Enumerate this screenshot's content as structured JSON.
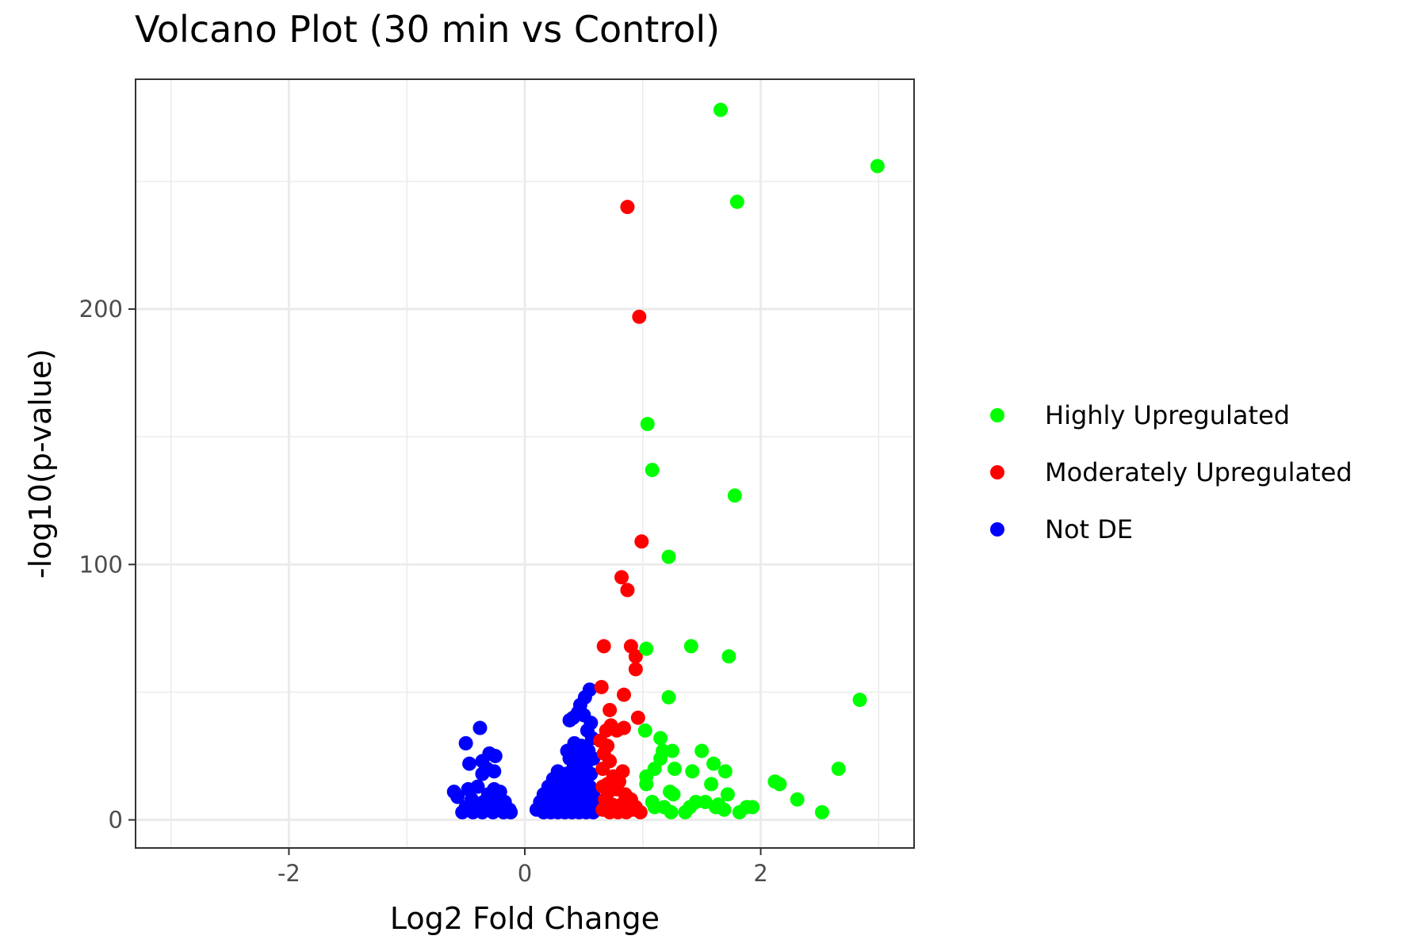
{
  "chart_data": {
    "type": "scatter",
    "title": "Volcano Plot (30 min vs Control)",
    "xlabel": "Log2 Fold Change",
    "ylabel": "-log10(p-value)",
    "xlim": [
      -3.3,
      3.3
    ],
    "ylim": [
      -11,
      290
    ],
    "x_ticks": [
      -2,
      0,
      2
    ],
    "x_tick_labels": [
      "-2",
      "0",
      "2"
    ],
    "y_ticks": [
      0,
      100,
      200
    ],
    "y_tick_labels": [
      "0",
      "100",
      "200"
    ],
    "x_minor_ticks": [
      -3,
      -1,
      1,
      3
    ],
    "y_minor_ticks": [
      50,
      150,
      250
    ],
    "grid": true,
    "legend_position": "right",
    "series": [
      {
        "name": "Highly Upregulated",
        "color": "#00ff00",
        "points": [
          [
            1.66,
            278
          ],
          [
            2.99,
            256
          ],
          [
            1.8,
            242
          ],
          [
            1.04,
            155
          ],
          [
            1.08,
            137
          ],
          [
            1.78,
            127
          ],
          [
            1.22,
            103
          ],
          [
            1.03,
            67
          ],
          [
            1.41,
            68
          ],
          [
            1.73,
            64
          ],
          [
            1.22,
            48
          ],
          [
            2.84,
            47
          ],
          [
            1.02,
            35
          ],
          [
            1.15,
            32
          ],
          [
            1.17,
            27
          ],
          [
            1.25,
            27
          ],
          [
            1.5,
            27
          ],
          [
            1.15,
            24
          ],
          [
            1.6,
            22
          ],
          [
            1.1,
            20
          ],
          [
            1.27,
            20
          ],
          [
            1.42,
            19
          ],
          [
            1.7,
            19
          ],
          [
            2.66,
            20
          ],
          [
            1.03,
            17
          ],
          [
            2.12,
            15
          ],
          [
            2.16,
            14
          ],
          [
            1.03,
            14
          ],
          [
            1.58,
            14
          ],
          [
            1.23,
            11
          ],
          [
            1.26,
            10
          ],
          [
            1.72,
            10
          ],
          [
            2.31,
            8
          ],
          [
            1.08,
            7
          ],
          [
            1.45,
            7
          ],
          [
            1.53,
            7
          ],
          [
            1.1,
            5
          ],
          [
            1.18,
            5
          ],
          [
            1.4,
            5
          ],
          [
            1.64,
            6
          ],
          [
            1.88,
            5
          ],
          [
            1.93,
            5
          ],
          [
            1.24,
            3
          ],
          [
            1.36,
            3
          ],
          [
            1.82,
            3
          ],
          [
            2.52,
            3
          ],
          [
            1.69,
            4
          ],
          [
            1.62,
            5
          ]
        ]
      },
      {
        "name": "Moderately Upregulated",
        "color": "#ff0000",
        "points": [
          [
            0.87,
            240
          ],
          [
            0.97,
            197
          ],
          [
            0.99,
            109
          ],
          [
            0.82,
            95
          ],
          [
            0.87,
            90
          ],
          [
            0.67,
            68
          ],
          [
            0.9,
            68
          ],
          [
            0.94,
            64
          ],
          [
            0.94,
            59
          ],
          [
            0.65,
            52
          ],
          [
            0.84,
            49
          ],
          [
            0.72,
            43
          ],
          [
            0.96,
            40
          ],
          [
            0.73,
            37
          ],
          [
            0.69,
            35
          ],
          [
            0.78,
            35
          ],
          [
            0.84,
            36
          ],
          [
            0.64,
            31
          ],
          [
            0.7,
            29
          ],
          [
            0.67,
            26
          ],
          [
            0.72,
            23
          ],
          [
            0.66,
            20
          ],
          [
            0.75,
            17
          ],
          [
            0.8,
            15
          ],
          [
            0.66,
            13
          ],
          [
            0.71,
            11
          ],
          [
            0.78,
            12
          ],
          [
            0.85,
            10
          ],
          [
            0.9,
            8
          ],
          [
            0.68,
            8
          ],
          [
            0.74,
            6
          ],
          [
            0.82,
            6
          ],
          [
            0.88,
            5
          ],
          [
            0.94,
            5
          ],
          [
            0.66,
            4
          ],
          [
            0.72,
            3
          ],
          [
            0.79,
            3
          ],
          [
            0.86,
            3
          ],
          [
            0.92,
            4
          ],
          [
            0.98,
            3
          ],
          [
            0.7,
            14
          ],
          [
            0.83,
            19
          ]
        ]
      },
      {
        "name": "Not DE",
        "color": "#0000ff",
        "points": [
          [
            -0.38,
            36
          ],
          [
            -0.5,
            30
          ],
          [
            -0.3,
            26
          ],
          [
            -0.25,
            25
          ],
          [
            -0.47,
            22
          ],
          [
            -0.36,
            23
          ],
          [
            -0.32,
            20
          ],
          [
            -0.26,
            19
          ],
          [
            -0.36,
            18
          ],
          [
            -0.4,
            13
          ],
          [
            -0.48,
            12
          ],
          [
            -0.26,
            12
          ],
          [
            -0.6,
            11
          ],
          [
            -0.21,
            11
          ],
          [
            -0.31,
            10
          ],
          [
            -0.57,
            9
          ],
          [
            -0.45,
            8
          ],
          [
            -0.35,
            7
          ],
          [
            -0.24,
            8
          ],
          [
            -0.17,
            7
          ],
          [
            -0.5,
            5
          ],
          [
            -0.4,
            4
          ],
          [
            -0.3,
            4
          ],
          [
            -0.2,
            5
          ],
          [
            -0.13,
            4
          ],
          [
            -0.53,
            3
          ],
          [
            -0.44,
            3
          ],
          [
            -0.36,
            3
          ],
          [
            -0.27,
            3
          ],
          [
            -0.18,
            3
          ],
          [
            -0.12,
            3
          ],
          [
            -0.22,
            6
          ],
          [
            -0.42,
            6
          ],
          [
            0.55,
            51
          ],
          [
            0.51,
            48
          ],
          [
            0.47,
            45
          ],
          [
            0.45,
            42
          ],
          [
            0.41,
            40
          ],
          [
            0.5,
            41
          ],
          [
            0.38,
            39
          ],
          [
            0.56,
            38
          ],
          [
            0.53,
            35
          ],
          [
            0.42,
            30
          ],
          [
            0.57,
            32
          ],
          [
            0.48,
            29
          ],
          [
            0.44,
            27
          ],
          [
            0.54,
            27
          ],
          [
            0.38,
            24
          ],
          [
            0.47,
            25
          ],
          [
            0.52,
            22
          ],
          [
            0.58,
            24
          ],
          [
            0.28,
            19
          ],
          [
            0.35,
            18
          ],
          [
            0.41,
            20
          ],
          [
            0.46,
            17
          ],
          [
            0.5,
            19
          ],
          [
            0.56,
            18
          ],
          [
            0.24,
            16
          ],
          [
            0.3,
            15
          ],
          [
            0.36,
            14
          ],
          [
            0.43,
            15
          ],
          [
            0.49,
            14
          ],
          [
            0.55,
            13
          ],
          [
            0.2,
            13
          ],
          [
            0.27,
            12
          ],
          [
            0.33,
            11
          ],
          [
            0.39,
            12
          ],
          [
            0.45,
            11
          ],
          [
            0.52,
            10
          ],
          [
            0.58,
            11
          ],
          [
            0.16,
            10
          ],
          [
            0.23,
            9
          ],
          [
            0.29,
            8
          ],
          [
            0.35,
            9
          ],
          [
            0.41,
            8
          ],
          [
            0.48,
            8
          ],
          [
            0.54,
            7
          ],
          [
            0.6,
            8
          ],
          [
            0.13,
            7
          ],
          [
            0.19,
            6
          ],
          [
            0.25,
            5
          ],
          [
            0.31,
            6
          ],
          [
            0.37,
            5
          ],
          [
            0.43,
            6
          ],
          [
            0.5,
            5
          ],
          [
            0.56,
            5
          ],
          [
            0.1,
            4
          ],
          [
            0.16,
            3
          ],
          [
            0.22,
            3
          ],
          [
            0.28,
            3
          ],
          [
            0.34,
            3
          ],
          [
            0.4,
            3
          ],
          [
            0.46,
            3
          ],
          [
            0.52,
            3
          ],
          [
            0.58,
            3
          ],
          [
            0.21,
            10
          ],
          [
            0.33,
            16
          ],
          [
            0.39,
            7
          ],
          [
            0.27,
            7
          ],
          [
            0.45,
            21
          ],
          [
            0.36,
            27
          ]
        ]
      }
    ]
  }
}
